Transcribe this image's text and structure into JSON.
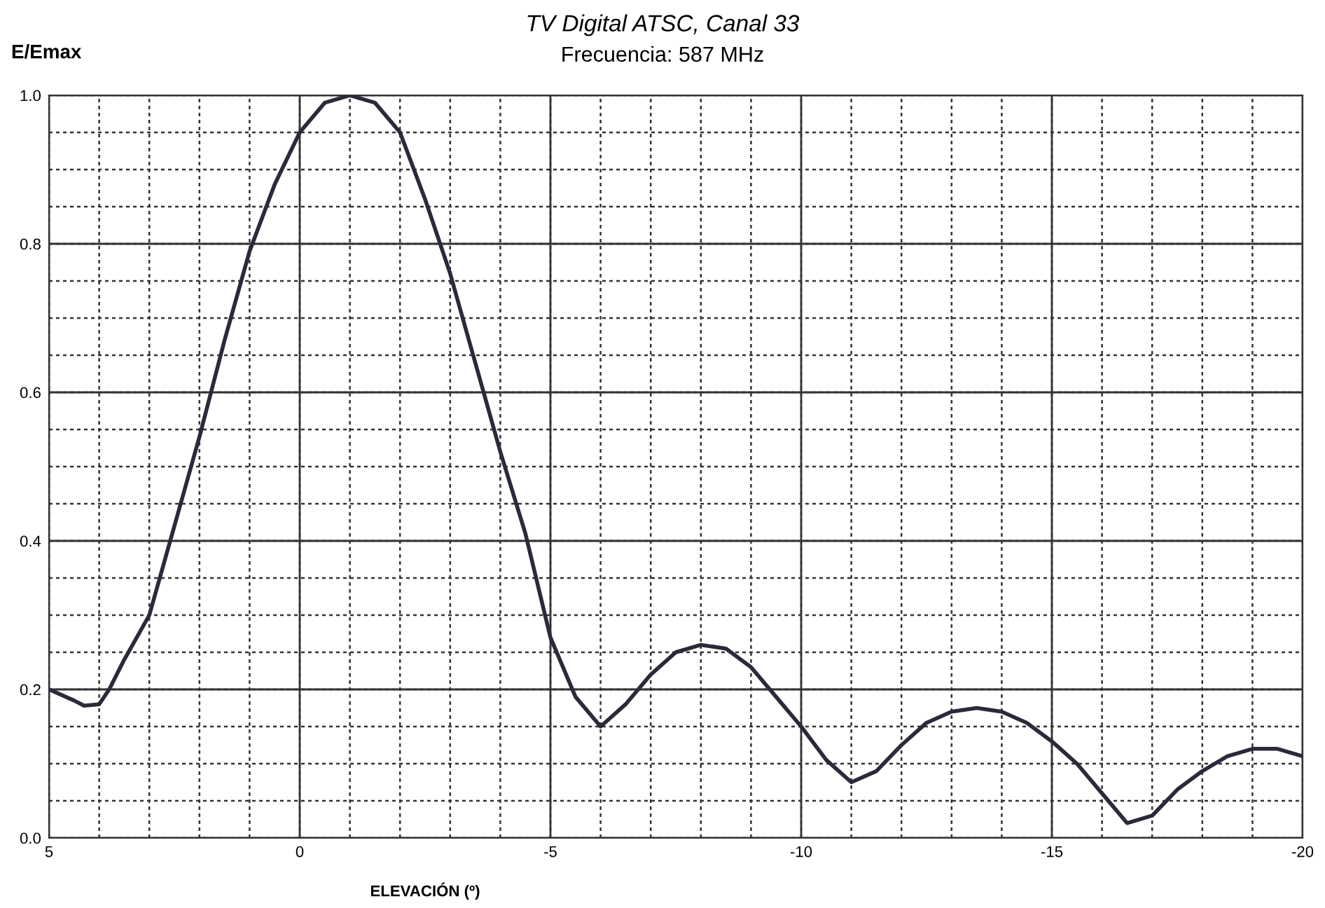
{
  "chart_data": {
    "type": "line",
    "title": "TV Digital ATSC, Canal 33",
    "subtitle": "Frecuencia: 587 MHz",
    "xlabel": "ELEVACIÓN (º)",
    "ylabel": "E/Emax",
    "x": [
      5,
      4.5,
      4.3,
      4,
      3.8,
      3.5,
      3,
      2.5,
      2,
      1.5,
      1,
      0.5,
      0,
      -0.5,
      -1,
      -1.5,
      -2,
      -2.5,
      -3,
      -3.5,
      -4,
      -4.5,
      -5,
      -5.5,
      -6,
      -6.5,
      -7,
      -7.5,
      -8,
      -8.5,
      -9,
      -9.5,
      -10,
      -10.5,
      -11,
      -11.5,
      -12,
      -12.5,
      -13,
      -13.5,
      -14,
      -14.5,
      -15,
      -15.5,
      -16,
      -16.5,
      -17,
      -17.5,
      -18,
      -18.5,
      -19,
      -19.5,
      -20
    ],
    "series": [
      {
        "color": "#2a2a3a",
        "values": [
          0.2,
          0.185,
          0.178,
          0.18,
          0.2,
          0.24,
          0.3,
          0.42,
          0.54,
          0.67,
          0.79,
          0.88,
          0.95,
          0.99,
          1.0,
          0.99,
          0.95,
          0.86,
          0.76,
          0.64,
          0.52,
          0.41,
          0.27,
          0.19,
          0.15,
          0.18,
          0.22,
          0.25,
          0.26,
          0.255,
          0.23,
          0.19,
          0.15,
          0.105,
          0.075,
          0.09,
          0.125,
          0.155,
          0.17,
          0.175,
          0.17,
          0.155,
          0.13,
          0.1,
          0.06,
          0.02,
          0.03,
          0.065,
          0.09,
          0.11,
          0.12,
          0.12,
          0.11
        ]
      }
    ],
    "xlim": [
      5,
      -20
    ],
    "xticks": [
      5,
      0,
      -5,
      -10,
      -15,
      -20
    ],
    "ylim": [
      0,
      1
    ],
    "yticks": [
      {
        "value": 0,
        "label": "0.0"
      },
      {
        "value": 0.2,
        "label": "0.2"
      },
      {
        "value": 0.4,
        "label": "0.4"
      },
      {
        "value": 0.6,
        "label": "0.6"
      },
      {
        "value": 0.8,
        "label": "0.8"
      },
      {
        "value": 1,
        "label": "1.0"
      }
    ],
    "grid": true,
    "marker": "none",
    "line_style": "solid"
  }
}
